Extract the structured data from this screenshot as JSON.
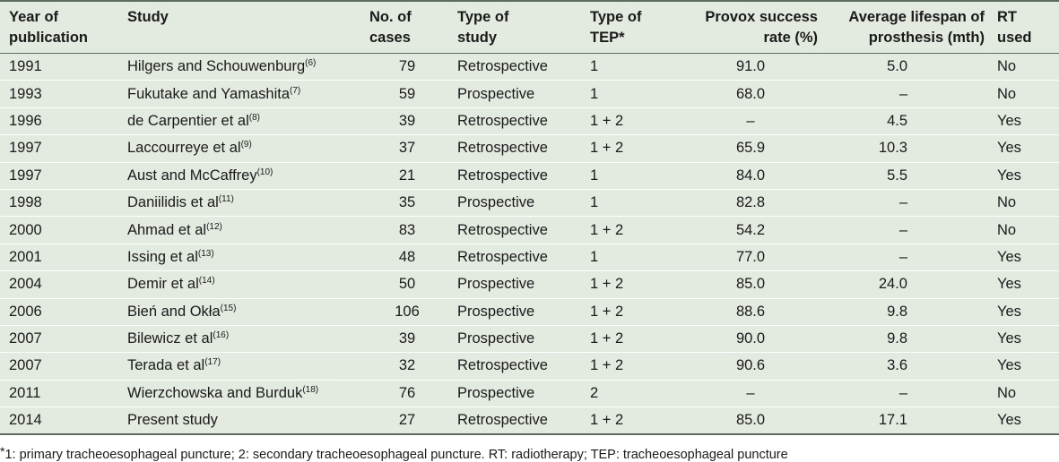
{
  "table": {
    "headers": [
      [
        "Year of",
        "publication"
      ],
      [
        "Study",
        ""
      ],
      [
        "No. of",
        "cases"
      ],
      [
        "Type of",
        "study"
      ],
      [
        "Type of",
        "TEP*"
      ],
      [
        "Provox success",
        "rate (%)"
      ],
      [
        "Average lifespan of",
        "prosthesis (mth)"
      ],
      [
        "RT",
        "used"
      ]
    ],
    "rows": [
      {
        "year": "1991",
        "study": "Hilgers and Schouwenburg",
        "ref": "(6)",
        "cases": "79",
        "type": "Retrospective",
        "tep": "1",
        "success": "91.0",
        "lifespan": "5.0",
        "rt": "No"
      },
      {
        "year": "1993",
        "study": "Fukutake and Yamashita",
        "ref": "(7)",
        "cases": "59",
        "type": "Prospective",
        "tep": "1",
        "success": "68.0",
        "lifespan": "–",
        "rt": "No"
      },
      {
        "year": "1996",
        "study": "de Carpentier et al",
        "ref": "(8)",
        "cases": "39",
        "type": "Retrospective",
        "tep": "1 + 2",
        "success": "–",
        "lifespan": "4.5",
        "rt": "Yes"
      },
      {
        "year": "1997",
        "study": "Laccourreye et al",
        "ref": "(9)",
        "cases": "37",
        "type": "Retrospective",
        "tep": "1 + 2",
        "success": "65.9",
        "lifespan": "10.3",
        "rt": "Yes"
      },
      {
        "year": "1997",
        "study": "Aust and McCaffrey",
        "ref": "(10)",
        "cases": "21",
        "type": "Retrospective",
        "tep": "1",
        "success": "84.0",
        "lifespan": "5.5",
        "rt": "Yes"
      },
      {
        "year": "1998",
        "study": "Daniilidis et al",
        "ref": "(11)",
        "cases": "35",
        "type": "Prospective",
        "tep": "1",
        "success": "82.8",
        "lifespan": "–",
        "rt": "No"
      },
      {
        "year": "2000",
        "study": "Ahmad et al",
        "ref": "(12)",
        "cases": "83",
        "type": "Retrospective",
        "tep": "1 + 2",
        "success": "54.2",
        "lifespan": "–",
        "rt": "No"
      },
      {
        "year": "2001",
        "study": "Issing et al",
        "ref": "(13)",
        "cases": "48",
        "type": "Retrospective",
        "tep": "1",
        "success": "77.0",
        "lifespan": "–",
        "rt": "Yes"
      },
      {
        "year": "2004",
        "study": "Demir et al",
        "ref": "(14)",
        "cases": "50",
        "type": "Prospective",
        "tep": "1 + 2",
        "success": "85.0",
        "lifespan": "24.0",
        "rt": "Yes"
      },
      {
        "year": "2006",
        "study": "Bień and Okła",
        "ref": "(15)",
        "cases": "106",
        "type": "Prospective",
        "tep": "1 + 2",
        "success": "88.6",
        "lifespan": "9.8",
        "rt": "Yes"
      },
      {
        "year": "2007",
        "study": "Bilewicz et al",
        "ref": "(16)",
        "cases": "39",
        "type": "Prospective",
        "tep": "1 + 2",
        "success": "90.0",
        "lifespan": "9.8",
        "rt": "Yes"
      },
      {
        "year": "2007",
        "study": "Terada et al",
        "ref": "(17)",
        "cases": "32",
        "type": "Retrospective",
        "tep": "1 + 2",
        "success": "90.6",
        "lifespan": "3.6",
        "rt": "Yes"
      },
      {
        "year": "2011",
        "study": "Wierzchowska and Burduk",
        "ref": "(18)",
        "cases": "76",
        "type": "Prospective",
        "tep": "2",
        "success": "–",
        "lifespan": "–",
        "rt": "No"
      },
      {
        "year": "2014",
        "study": "Present study",
        "ref": "",
        "cases": "27",
        "type": "Retrospective",
        "tep": "1 + 2",
        "success": "85.0",
        "lifespan": "17.1",
        "rt": "Yes"
      }
    ]
  },
  "footnote": {
    "marker": "*",
    "text": "1: primary tracheoesophageal puncture; 2: secondary tracheoesophageal puncture. RT: radiotherapy; TEP: tracheoesophageal puncture"
  }
}
